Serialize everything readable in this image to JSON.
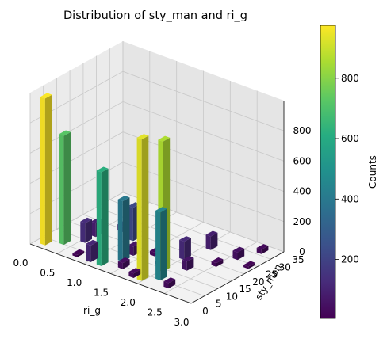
{
  "chart_data": {
    "type": "bar3d",
    "title": "Distribution of sty_man and ri_g",
    "xlabel": "ri_g",
    "ylabel": "sty_man",
    "zlabel": "",
    "xlim": [
      0,
      3
    ],
    "ylim": [
      0,
      35
    ],
    "zlim": [
      0,
      1000
    ],
    "xticks": [
      "0.0",
      "0.5",
      "1.0",
      "1.5",
      "2.0",
      "2.5",
      "3.0"
    ],
    "yticks": [
      "0",
      "5",
      "10",
      "15",
      "20",
      "25",
      "30",
      "35"
    ],
    "zticks": [
      "0",
      "200",
      "400",
      "600",
      "800"
    ],
    "colorbar": {
      "label": "Counts",
      "range": [
        5,
        975
      ],
      "ticks": [
        "200",
        "400",
        "600",
        "800"
      ],
      "colormap": "viridis"
    },
    "bars": [
      {
        "x": 0.15,
        "y": 3,
        "value": 970
      },
      {
        "x": 0.35,
        "y": 6,
        "value": 720
      },
      {
        "x": 0.55,
        "y": 10,
        "value": 130
      },
      {
        "x": 0.55,
        "y": 14,
        "value": 90
      },
      {
        "x": 0.75,
        "y": 3,
        "value": 15
      },
      {
        "x": 0.75,
        "y": 20,
        "value": 40
      },
      {
        "x": 1.0,
        "y": 3,
        "value": 110
      },
      {
        "x": 1.05,
        "y": 18,
        "value": 220
      },
      {
        "x": 1.2,
        "y": 3,
        "value": 620
      },
      {
        "x": 1.35,
        "y": 8,
        "value": 400
      },
      {
        "x": 1.35,
        "y": 12,
        "value": 60
      },
      {
        "x": 1.4,
        "y": 22,
        "value": 30
      },
      {
        "x": 1.5,
        "y": 5,
        "value": 40
      },
      {
        "x": 1.6,
        "y": 15,
        "value": 25
      },
      {
        "x": 1.8,
        "y": 3,
        "value": 30
      },
      {
        "x": 1.85,
        "y": 12,
        "value": 20
      },
      {
        "x": 1.95,
        "y": 3,
        "value": 935
      },
      {
        "x": 2.0,
        "y": 10,
        "value": 860
      },
      {
        "x": 2.0,
        "y": 18,
        "value": 120
      },
      {
        "x": 2.1,
        "y": 26,
        "value": 90
      },
      {
        "x": 2.15,
        "y": 6,
        "value": 450
      },
      {
        "x": 2.25,
        "y": 14,
        "value": 60
      },
      {
        "x": 2.4,
        "y": 4,
        "value": 35
      },
      {
        "x": 2.5,
        "y": 20,
        "value": 25
      },
      {
        "x": 2.6,
        "y": 26,
        "value": 50
      },
      {
        "x": 2.75,
        "y": 32,
        "value": 30
      },
      {
        "x": 2.9,
        "y": 24,
        "value": 15
      }
    ]
  }
}
